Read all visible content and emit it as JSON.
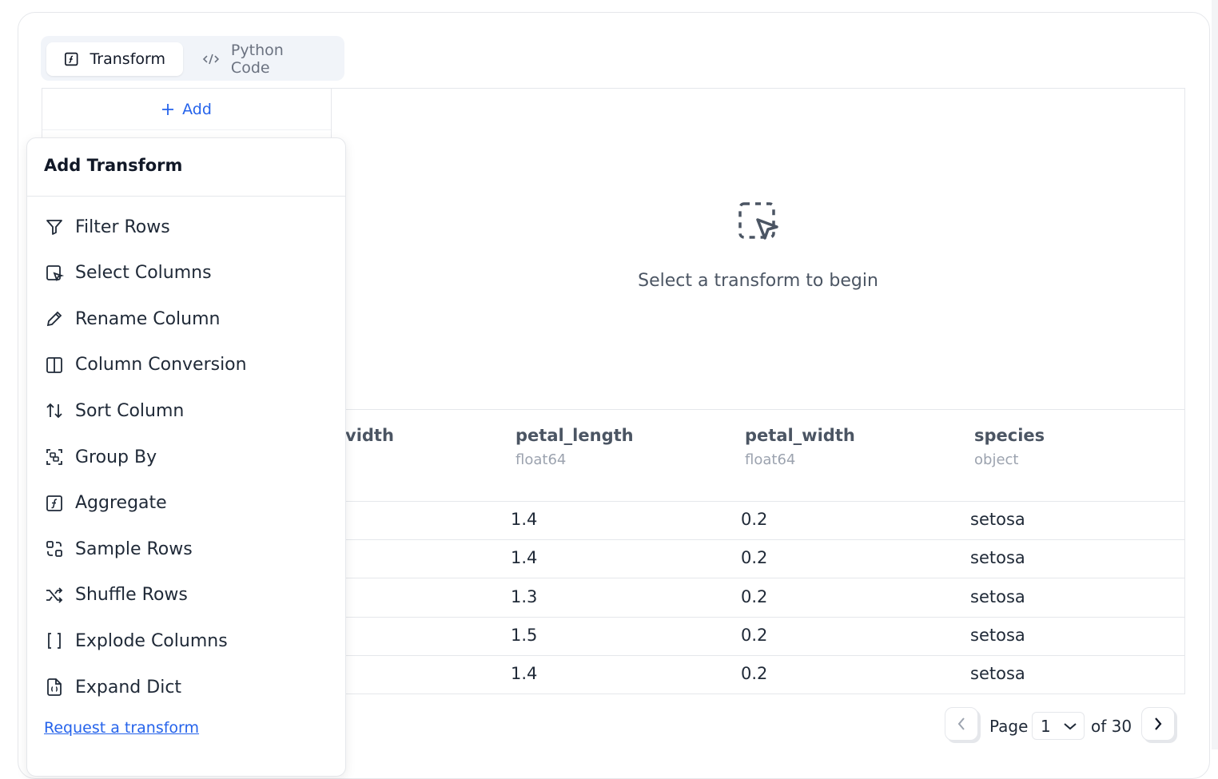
{
  "tabs": [
    {
      "label": "Transform",
      "icon": "function-square-icon",
      "active": true
    },
    {
      "label": "Python Code",
      "icon": "code-icon",
      "active": false
    }
  ],
  "add_button": "Add",
  "empty_state": {
    "icon": "dashed-select-cursor-icon",
    "text": "Select a transform to begin"
  },
  "table": {
    "columns": [
      {
        "name": "vidth",
        "type": ""
      },
      {
        "name": "petal_length",
        "type": "float64"
      },
      {
        "name": "petal_width",
        "type": "float64"
      },
      {
        "name": "species",
        "type": "object"
      }
    ],
    "rows": [
      [
        "",
        "1.4",
        "0.2",
        "setosa"
      ],
      [
        "",
        "1.4",
        "0.2",
        "setosa"
      ],
      [
        "",
        "1.3",
        "0.2",
        "setosa"
      ],
      [
        "",
        "1.5",
        "0.2",
        "setosa"
      ],
      [
        "",
        "1.4",
        "0.2",
        "setosa"
      ]
    ]
  },
  "dropdown": {
    "title": "Add Transform",
    "items": [
      {
        "label": "Filter Rows",
        "icon": "filter-icon"
      },
      {
        "label": "Select Columns",
        "icon": "select-columns-icon"
      },
      {
        "label": "Rename Column",
        "icon": "pencil-icon"
      },
      {
        "label": "Column Conversion",
        "icon": "columns-icon"
      },
      {
        "label": "Sort Column",
        "icon": "sort-arrows-icon"
      },
      {
        "label": "Group By",
        "icon": "group-icon"
      },
      {
        "label": "Aggregate",
        "icon": "function-square-icon"
      },
      {
        "label": "Sample Rows",
        "icon": "sample-icon"
      },
      {
        "label": "Shuffle Rows",
        "icon": "shuffle-icon"
      },
      {
        "label": "Explode Columns",
        "icon": "brackets-icon"
      },
      {
        "label": "Expand Dict",
        "icon": "file-braces-icon"
      }
    ],
    "link": "Request a transform"
  },
  "pagination": {
    "page_label": "Page",
    "current_page": "1",
    "of_label": "of 30"
  },
  "colors": {
    "accent": "#2563eb",
    "border": "#e5e7eb",
    "tab_bg": "#f1f4f9"
  }
}
